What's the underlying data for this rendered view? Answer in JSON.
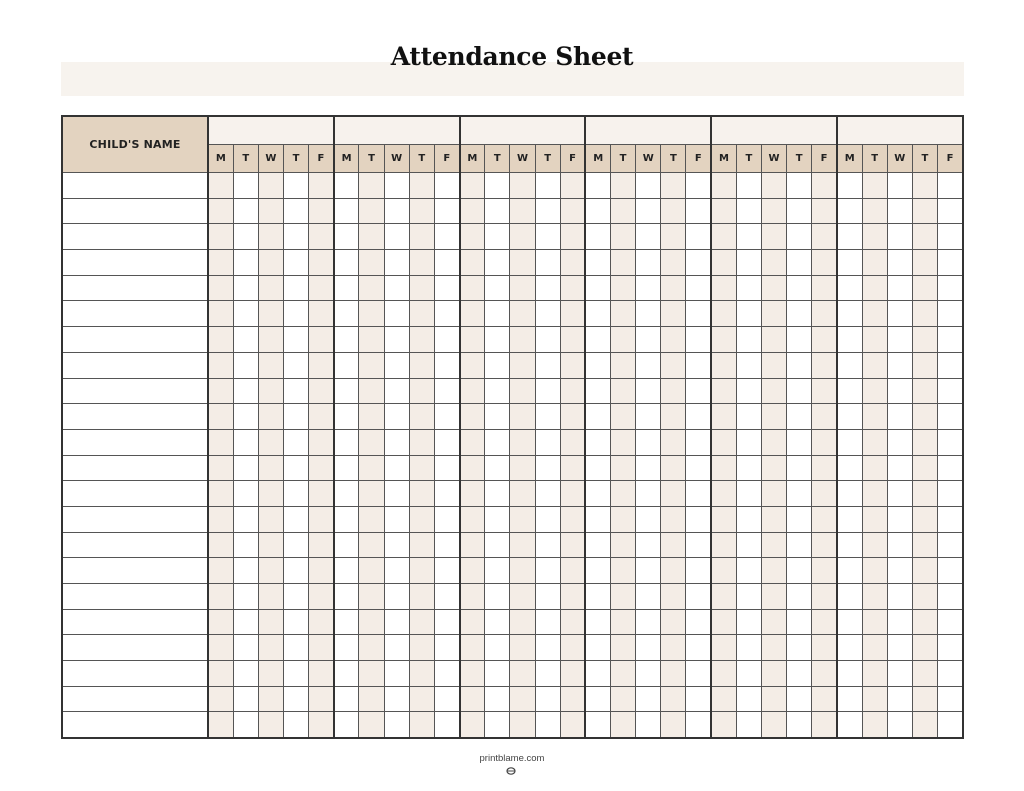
{
  "title": "Attendance Sheet",
  "header": {
    "name_label": "CHILD'S NAME",
    "weeks": 6,
    "days": [
      "M",
      "T",
      "W",
      "T",
      "F"
    ]
  },
  "rows": 22,
  "colors": {
    "header_tan": "#e3d3c0",
    "shade": "#f4ede6",
    "band": "#f7f3ee",
    "border": "#333333"
  },
  "footer": {
    "site": "printblame.com",
    "logo_icon": "printblame-logo-icon"
  }
}
